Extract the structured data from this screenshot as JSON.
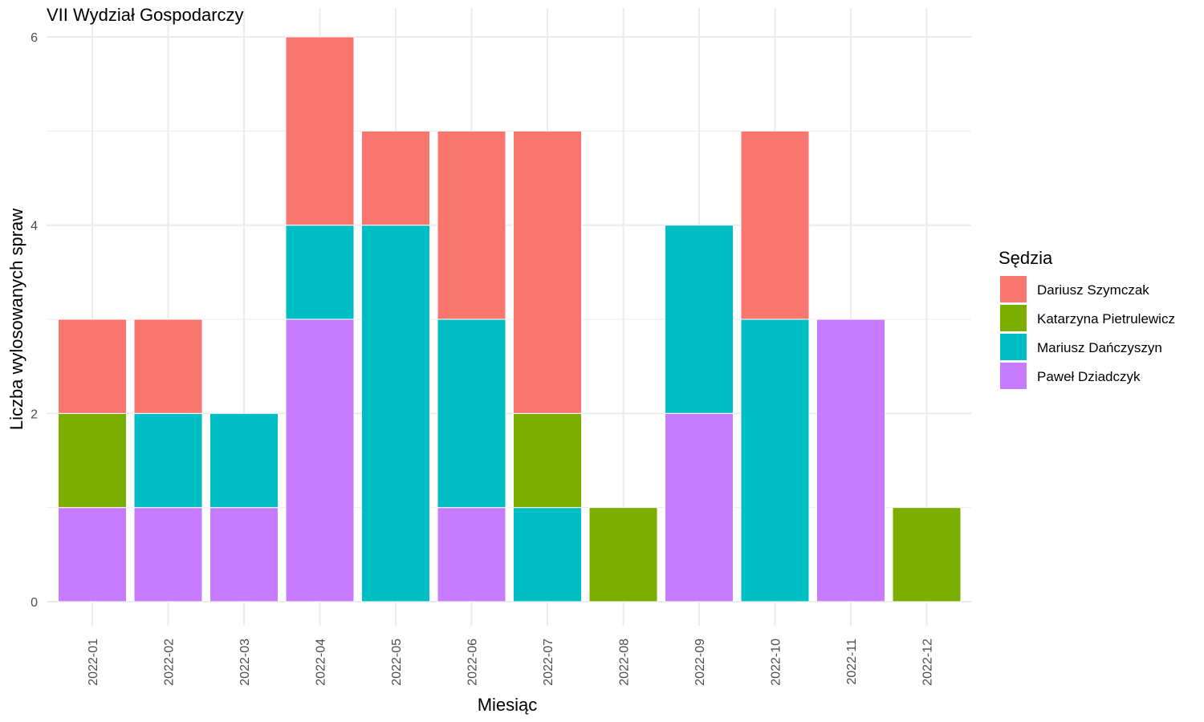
{
  "chart_data": {
    "type": "bar",
    "stacked": true,
    "title": "VII Wydział Gospodarczy",
    "xlabel": "Miesiąc",
    "ylabel": "Liczba wylosowanych spraw",
    "ylim": [
      0,
      6
    ],
    "yticks": [
      "0",
      "2",
      "4",
      "6"
    ],
    "grid": true,
    "legend_placement": "right",
    "legend_title": "Sędzia",
    "categories": [
      "2022-01",
      "2022-02",
      "2022-03",
      "2022-04",
      "2022-05",
      "2022-06",
      "2022-07",
      "2022-08",
      "2022-09",
      "2022-10",
      "2022-11",
      "2022-12"
    ],
    "series": [
      {
        "name": "Dariusz Szymczak",
        "color": "#F8766D",
        "values": [
          1,
          1,
          0,
          2,
          1,
          2,
          3,
          0,
          0,
          2,
          0,
          0
        ]
      },
      {
        "name": "Katarzyna Pietrulewicz",
        "color": "#7CAE00",
        "values": [
          1,
          0,
          0,
          0,
          0,
          0,
          1,
          1,
          0,
          0,
          0,
          1
        ]
      },
      {
        "name": "Mariusz Dańczyszyn",
        "color": "#00BFC4",
        "values": [
          0,
          1,
          1,
          1,
          4,
          2,
          1,
          0,
          2,
          3,
          0,
          0
        ]
      },
      {
        "name": "Paweł Dziadczyk",
        "color": "#C77CFF",
        "values": [
          1,
          1,
          1,
          3,
          0,
          1,
          0,
          0,
          2,
          0,
          3,
          0
        ]
      }
    ]
  }
}
